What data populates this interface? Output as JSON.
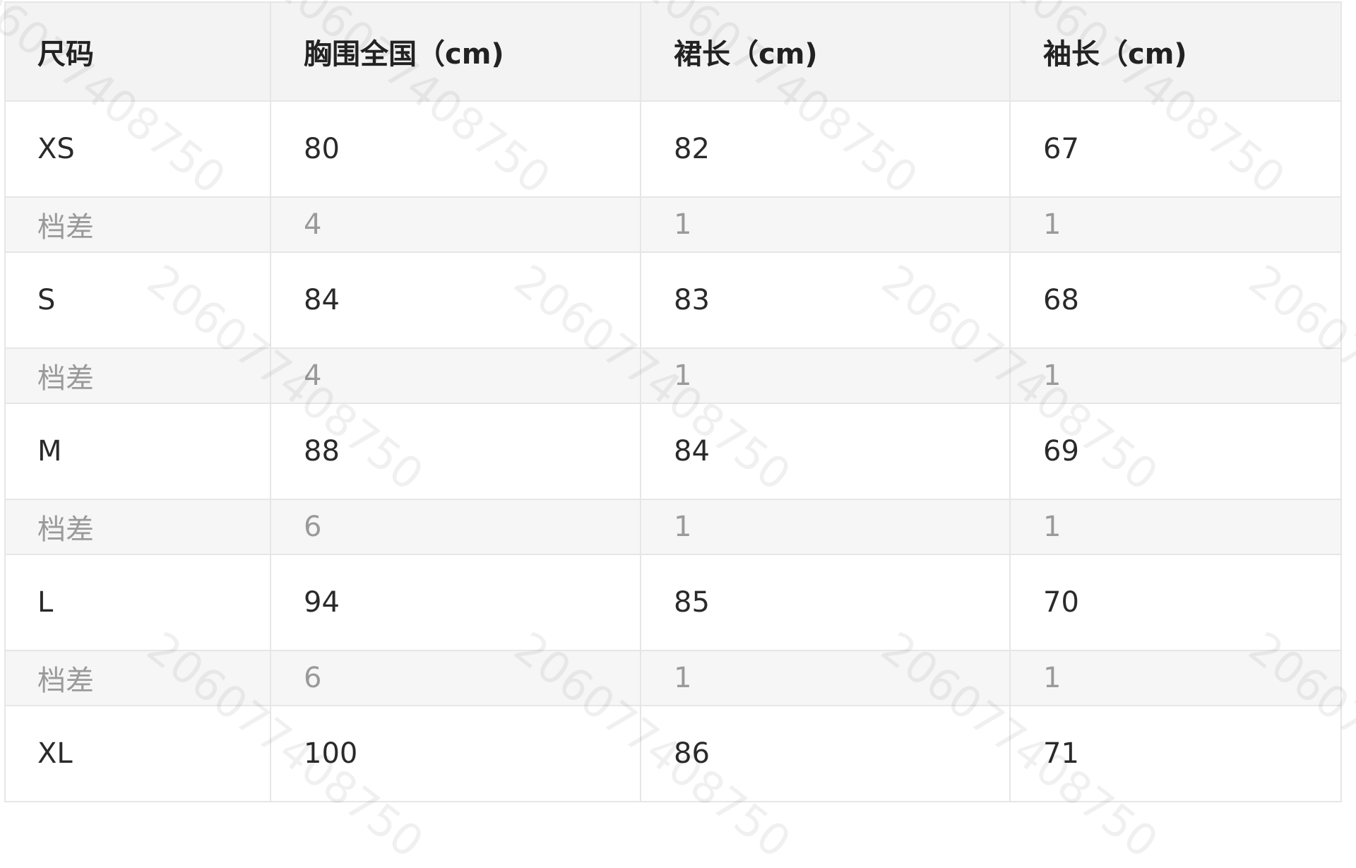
{
  "table": {
    "headers": [
      "尺码",
      "胸围全国（cm)",
      "裙长（cm)",
      "袖长（cm)"
    ],
    "rows": [
      {
        "type": "main",
        "cells": [
          "XS",
          "80",
          "82",
          "67"
        ]
      },
      {
        "type": "diff",
        "cells": [
          "档差",
          "4",
          "1",
          "1"
        ]
      },
      {
        "type": "main",
        "cells": [
          "S",
          "84",
          "83",
          "68"
        ]
      },
      {
        "type": "diff",
        "cells": [
          "档差",
          "4",
          "1",
          "1"
        ]
      },
      {
        "type": "main",
        "cells": [
          "M",
          "88",
          "84",
          "69"
        ]
      },
      {
        "type": "diff",
        "cells": [
          "档差",
          "6",
          "1",
          "1"
        ]
      },
      {
        "type": "main",
        "cells": [
          "L",
          "94",
          "85",
          "70"
        ]
      },
      {
        "type": "diff",
        "cells": [
          "档差",
          "6",
          "1",
          "1"
        ]
      },
      {
        "type": "main",
        "cells": [
          "XL",
          "100",
          "86",
          "71"
        ]
      }
    ]
  },
  "watermark": "206077408750"
}
